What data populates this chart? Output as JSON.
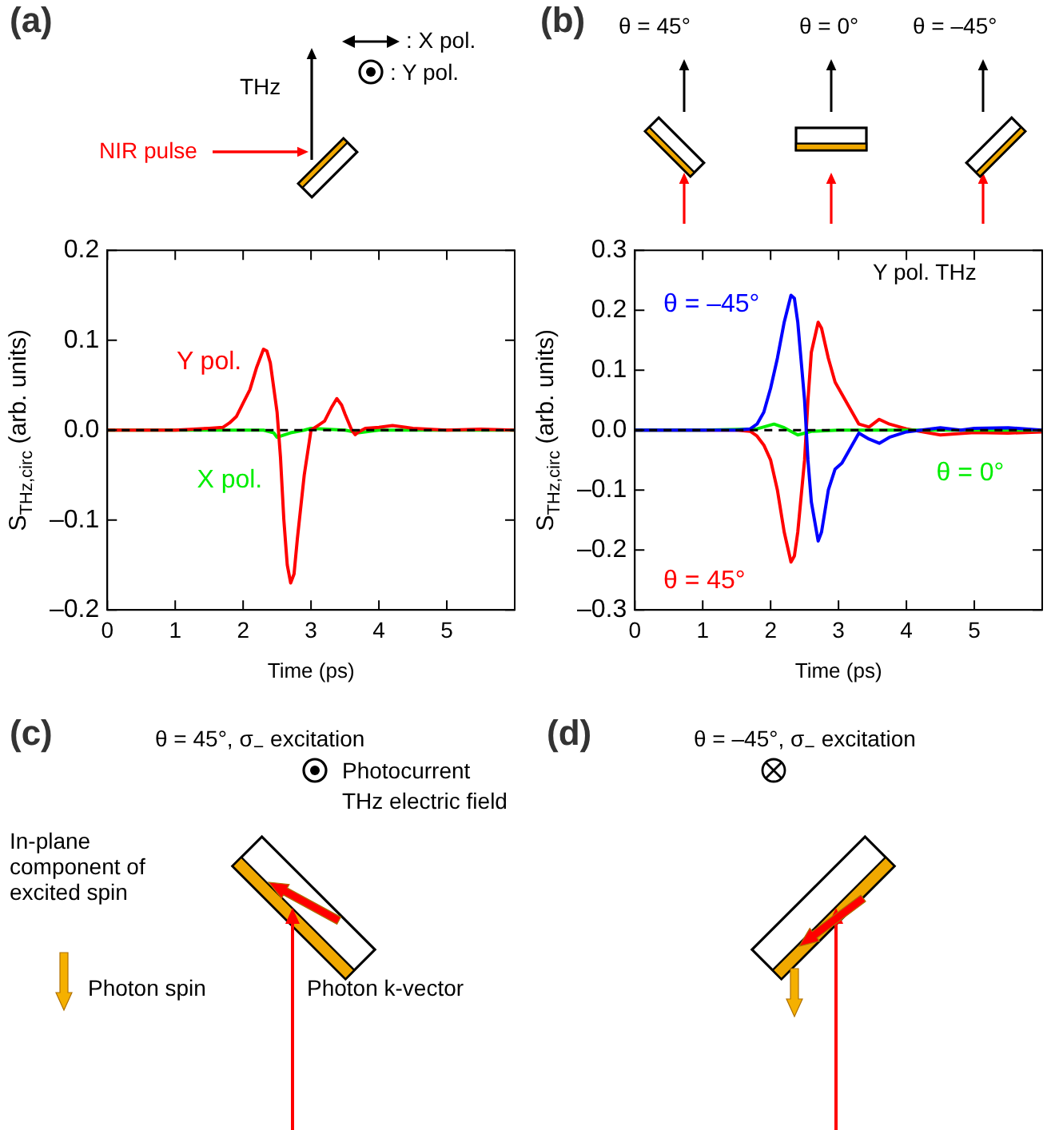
{
  "chart_data": [
    {
      "type": "line",
      "title": "(a)",
      "xlabel": "Time (ps)",
      "ylabel": "S$_{THz,circ}$ (arb. units)",
      "xlim": [
        0,
        6
      ],
      "xticks": [
        0,
        1,
        2,
        3,
        4,
        5
      ],
      "ylim": [
        -0.2,
        0.2
      ],
      "yticks": [
        {
          "value": -0.2,
          "label": "–0.2"
        },
        {
          "value": -0.1,
          "label": "–0.1"
        },
        {
          "value": 0,
          "label": "0.0"
        },
        {
          "value": 0.1,
          "label": "0.1"
        },
        {
          "value": 0.2,
          "label": "0.2"
        }
      ],
      "grid": false,
      "legend": false,
      "marker": "none",
      "line_style": "solid",
      "ref_lines": [
        {
          "axis": "y",
          "value": 0,
          "color": "#000000",
          "line_style": "dashed"
        }
      ],
      "annotations": [
        "THz",
        "NIR pulse",
        ": X pol.",
        ": Y pol."
      ],
      "series": [
        {
          "name": "Y pol.",
          "color": "#ff0000",
          "x": [
            0,
            0.5,
            1,
            1.5,
            1.7,
            1.8,
            1.9,
            2.0,
            2.1,
            2.2,
            2.3,
            2.35,
            2.4,
            2.5,
            2.55,
            2.6,
            2.65,
            2.7,
            2.75,
            2.8,
            2.9,
            3.0,
            3.1,
            3.2,
            3.3,
            3.38,
            3.45,
            3.5,
            3.6,
            3.65,
            3.7,
            3.8,
            4.0,
            4.2,
            4.5,
            5.0,
            5.5,
            6.0
          ],
          "values": [
            0,
            0,
            0,
            0.002,
            0.003,
            0.008,
            0.015,
            0.03,
            0.045,
            0.07,
            0.09,
            0.088,
            0.075,
            0.02,
            -0.03,
            -0.1,
            -0.15,
            -0.17,
            -0.16,
            -0.12,
            -0.05,
            0,
            0.005,
            0.01,
            0.025,
            0.035,
            0.028,
            0.018,
            0,
            -0.005,
            -0.002,
            0.002,
            0.003,
            0.005,
            0.002,
            0,
            0.001,
            0
          ]
        },
        {
          "name": "X pol.",
          "color": "#00ee00",
          "x": [
            0,
            1,
            2,
            2.3,
            2.45,
            2.5,
            2.7,
            2.9,
            3.0,
            3.5,
            3.7,
            4.0,
            5.0,
            6.0
          ],
          "values": [
            0,
            0,
            0,
            0,
            -0.003,
            -0.008,
            -0.003,
            0,
            0.002,
            0,
            -0.003,
            0,
            0,
            0
          ]
        }
      ]
    },
    {
      "type": "line",
      "title": "(b)",
      "xlabel": "Time (ps)",
      "ylabel": "S$_{THz,circ}$ (arb. units)",
      "xlim": [
        0,
        6
      ],
      "xticks": [
        0,
        1,
        2,
        3,
        4,
        5
      ],
      "ylim": [
        -0.3,
        0.3
      ],
      "yticks": [
        {
          "value": -0.3,
          "label": "–0.3"
        },
        {
          "value": -0.2,
          "label": "–0.2"
        },
        {
          "value": -0.1,
          "label": "–0.1"
        },
        {
          "value": 0,
          "label": "0.0"
        },
        {
          "value": 0.1,
          "label": "0.1"
        },
        {
          "value": 0.2,
          "label": "0.2"
        },
        {
          "value": 0.3,
          "label": "0.3"
        }
      ],
      "grid": false,
      "legend": false,
      "marker": "none",
      "line_style": "solid",
      "ref_lines": [
        {
          "axis": "y",
          "value": 0,
          "color": "#000000",
          "line_style": "dashed"
        }
      ],
      "annotations": [
        "θ = 45°",
        "θ = 0°",
        "θ = –45°",
        "Y pol. THz"
      ],
      "series": [
        {
          "name": "θ = –45°",
          "color": "#0000ff",
          "x": [
            0,
            1,
            1.5,
            1.7,
            1.8,
            1.9,
            2.0,
            2.1,
            2.2,
            2.3,
            2.35,
            2.4,
            2.5,
            2.55,
            2.6,
            2.7,
            2.75,
            2.85,
            2.95,
            3.05,
            3.15,
            3.3,
            3.45,
            3.6,
            3.75,
            4.0,
            4.5,
            4.8,
            5.0,
            5.5,
            6.0
          ],
          "values": [
            0,
            0,
            0,
            0.002,
            0.01,
            0.03,
            0.07,
            0.12,
            0.18,
            0.225,
            0.22,
            0.18,
            0.05,
            -0.05,
            -0.12,
            -0.185,
            -0.17,
            -0.1,
            -0.065,
            -0.055,
            -0.035,
            -0.005,
            -0.015,
            -0.022,
            -0.012,
            -0.003,
            0.004,
            0,
            0.003,
            0.004,
            0
          ]
        },
        {
          "name": "θ = 0°",
          "color": "#00ee00",
          "x": [
            0,
            1,
            1.8,
            2.05,
            2.2,
            2.4,
            2.6,
            3.0,
            4.0,
            5.0,
            6.0
          ],
          "values": [
            0,
            0,
            0.002,
            0.01,
            0.004,
            -0.008,
            -0.002,
            0,
            0,
            0,
            0
          ]
        },
        {
          "name": "θ = 45°",
          "color": "#ff0000",
          "x": [
            0,
            1,
            1.5,
            1.7,
            1.8,
            1.9,
            2.0,
            2.1,
            2.2,
            2.3,
            2.35,
            2.4,
            2.5,
            2.55,
            2.6,
            2.7,
            2.75,
            2.85,
            2.95,
            3.05,
            3.15,
            3.3,
            3.45,
            3.6,
            3.75,
            4.0,
            4.5,
            5.0,
            5.5,
            6.0
          ],
          "values": [
            0,
            0,
            0,
            -0.002,
            -0.01,
            -0.025,
            -0.05,
            -0.1,
            -0.17,
            -0.22,
            -0.21,
            -0.17,
            -0.05,
            0.05,
            0.13,
            0.18,
            0.17,
            0.12,
            0.08,
            0.06,
            0.04,
            0.01,
            0.005,
            0.018,
            0.01,
            0.002,
            -0.008,
            -0.004,
            -0.005,
            -0.003
          ]
        }
      ]
    },
    {
      "type": "other",
      "annotations": [
        "(c)",
        "θ = 45°, σ$_{−}$ excitation",
        "Photocurrent",
        "THz electric field",
        "In-plane component of excited spin",
        "Photon spin",
        "Photon k-vector",
        "(d)",
        "θ = –45°, σ$_{−}$ excitation"
      ]
    }
  ]
}
